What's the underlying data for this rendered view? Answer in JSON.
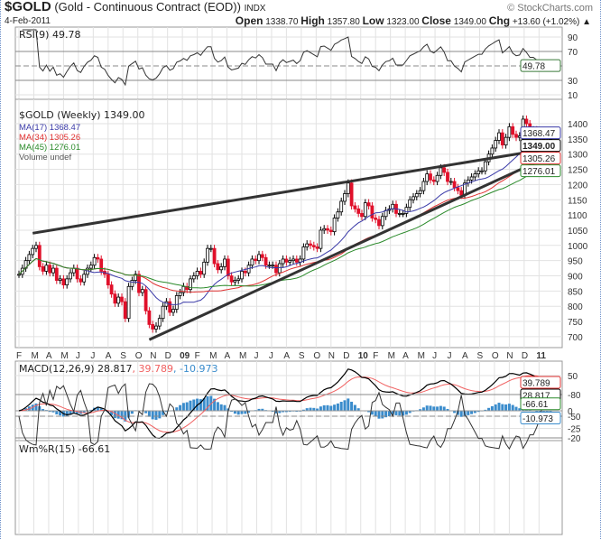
{
  "header": {
    "symbol": "$GOLD",
    "description": "(Gold - Continuous Contract (EOD))",
    "exchange": "INDX",
    "credit": "© StockCharts.com",
    "date": "4-Feb-2011",
    "open_label": "Open",
    "open": "1338.70",
    "high_label": "High",
    "high": "1357.80",
    "low_label": "Low",
    "low": "1323.00",
    "close_label": "Close",
    "close": "1349.00",
    "chg_label": "Chg",
    "chg": "+13.60 (+1.02%) ▲"
  },
  "chart_data": {
    "type": "candlestick",
    "title": "$GOLD (Weekly) 1349.00",
    "x_start": "Feb 2008",
    "x_end": "4-Feb-2011",
    "interval": "weekly",
    "month_labels": [
      "F",
      "M",
      "A",
      "M",
      "J",
      "J",
      "A",
      "S",
      "O",
      "N",
      "D",
      "09",
      "F",
      "M",
      "A",
      "M",
      "J",
      "J",
      "A",
      "S",
      "O",
      "N",
      "D",
      "10",
      "F",
      "M",
      "A",
      "M",
      "J",
      "J",
      "A",
      "S",
      "O",
      "N",
      "D",
      "11"
    ],
    "price": {
      "ylim": [
        670,
        1480
      ],
      "ticks": [
        700,
        750,
        800,
        850,
        900,
        950,
        1000,
        1050,
        1100,
        1150,
        1200,
        1250,
        1300,
        1350,
        1400
      ],
      "closes": [
        905,
        925,
        950,
        970,
        990,
        1000,
        930,
        915,
        935,
        910,
        925,
        885,
        890,
        870,
        890,
        910,
        925,
        890,
        880,
        905,
        925,
        935,
        960,
        955,
        915,
        905,
        870,
        840,
        810,
        830,
        815,
        760,
        865,
        885,
        905,
        845,
        855,
        785,
        740,
        725,
        735,
        760,
        800,
        815,
        780,
        790,
        835,
        845,
        865,
        855,
        890,
        900,
        915,
        905,
        945,
        990,
        990,
        940,
        920,
        930,
        955,
        900,
        880,
        885,
        890,
        915,
        910,
        935,
        955,
        950,
        970,
        960,
        935,
        935,
        935,
        910,
        940,
        955,
        945,
        950,
        955,
        945,
        955,
        995,
        1005,
        1000,
        995,
        990,
        1050,
        1055,
        1050,
        1045,
        1090,
        1110,
        1145,
        1170,
        1205,
        1130,
        1120,
        1105,
        1095,
        1140,
        1130,
        1090,
        1085,
        1065,
        1095,
        1115,
        1120,
        1135,
        1105,
        1105,
        1105,
        1125,
        1150,
        1160,
        1170,
        1180,
        1210,
        1235,
        1215,
        1210,
        1230,
        1255,
        1240,
        1210,
        1210,
        1190,
        1180,
        1165,
        1205,
        1215,
        1225,
        1235,
        1245,
        1245,
        1275,
        1300,
        1320,
        1345,
        1370,
        1330,
        1355,
        1390,
        1365,
        1355,
        1360,
        1415,
        1400,
        1380,
        1380,
        1370,
        1360,
        1335,
        1340,
        1349
      ],
      "legend": [
        {
          "label": "MA(17) 1368.47",
          "period": 17,
          "value": "1368.47",
          "color": "#3a3aa8"
        },
        {
          "label": "MA(34) 1305.26",
          "period": 34,
          "value": "1305.26",
          "color": "#e03030"
        },
        {
          "label": "MA(45) 1276.01",
          "period": 45,
          "value": "1276.01",
          "color": "#2a8a2a"
        },
        {
          "label": "Volume undef",
          "color": "#555"
        }
      ],
      "last_value": "1349.00",
      "trendlines": [
        {
          "from": [
            4,
            1040
          ],
          "to": [
            157,
            1322
          ]
        },
        {
          "from": [
            38,
            690
          ],
          "to": [
            157,
            1305
          ]
        }
      ]
    },
    "rsi": {
      "label": "RSI(9) 49.78",
      "period": 9,
      "value": "49.78",
      "ticks": [
        90,
        70,
        30,
        10
      ],
      "ylim": [
        0,
        100
      ]
    },
    "macd": {
      "label_main": "MACD(12,26,9) 28.817",
      "label_signal": ", 39.789",
      "label_hist": ", -10.973",
      "macd": "28.817",
      "signal": "39.789",
      "hist": "-10.973",
      "ticks": [
        50,
        0,
        -25
      ],
      "ylim": [
        -48,
        70
      ],
      "colors": {
        "macd": "#000000",
        "signal": "#f06060",
        "hist": "#3a8ccc"
      }
    },
    "willr": {
      "label": "Wm%R(15) -66.61",
      "period": 15,
      "value": "-66.61",
      "ticks": [
        -20,
        -50,
        -80
      ],
      "ylim": [
        -100,
        0
      ]
    }
  }
}
